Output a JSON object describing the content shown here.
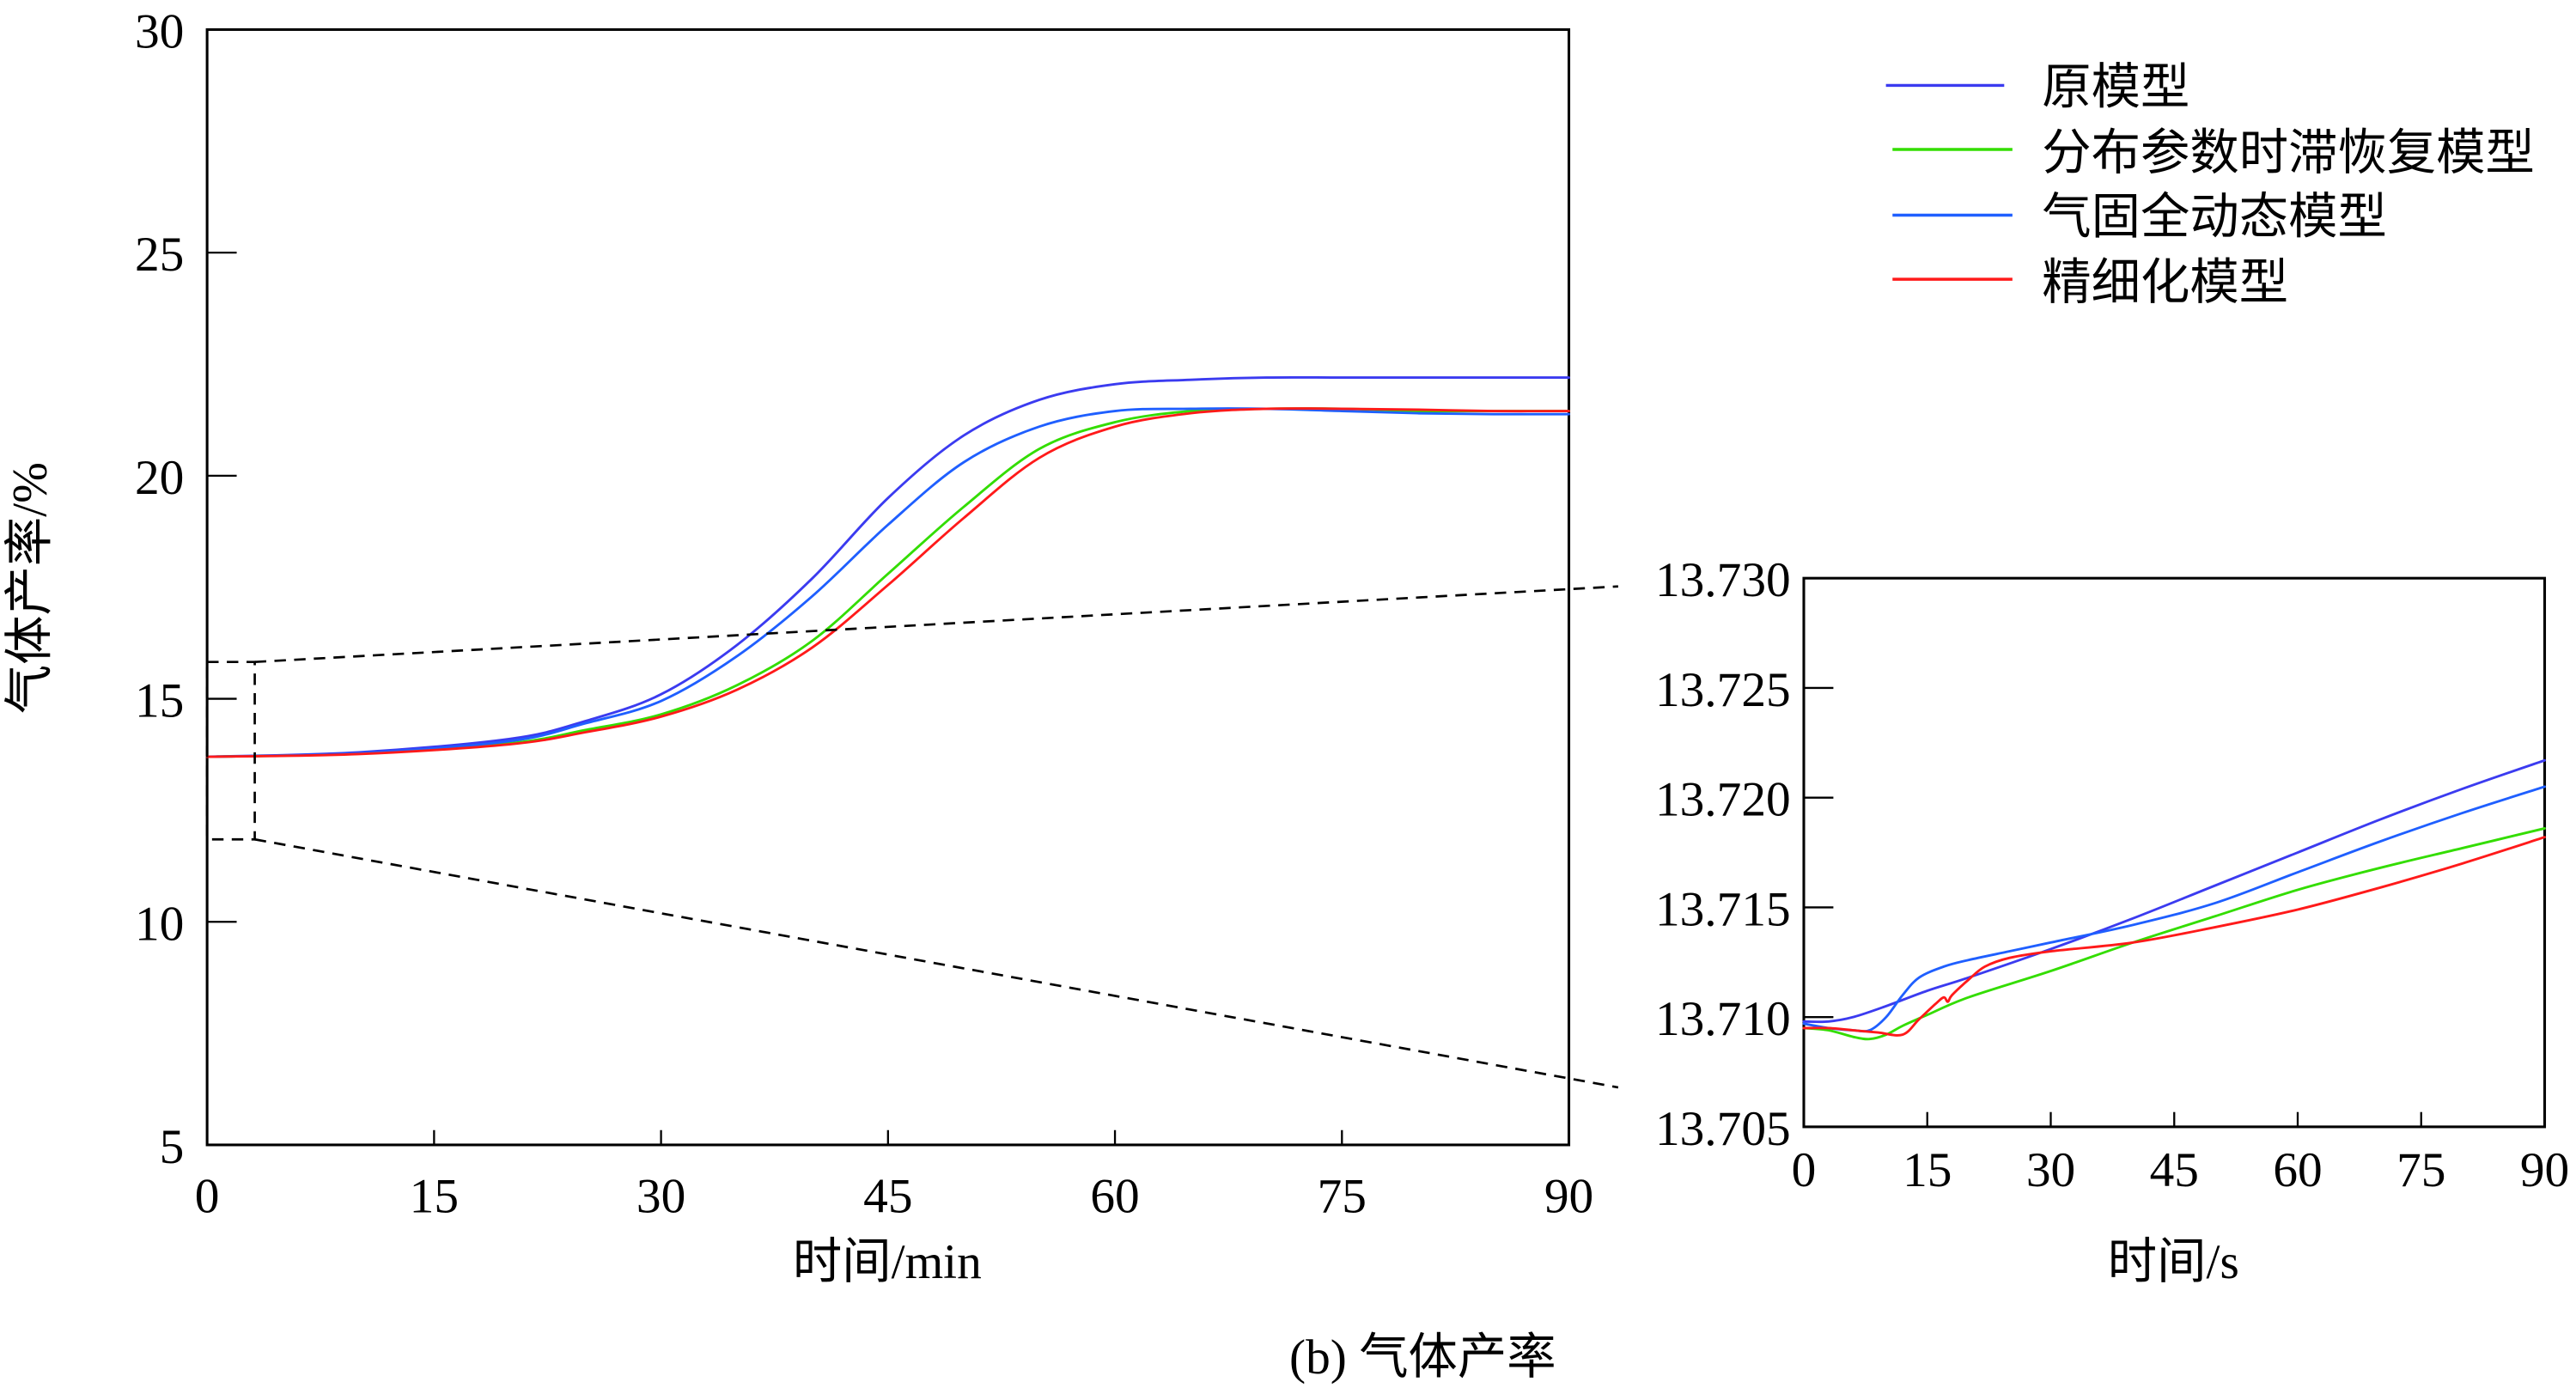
{
  "chart_data": [
    {
      "id": "main",
      "type": "line",
      "title": "",
      "xlabel": "时间/min",
      "ylabel": "气体产率/%",
      "xlim": [
        0,
        90
      ],
      "ylim": [
        5,
        30
      ],
      "xticks": [
        0,
        15,
        30,
        45,
        60,
        75,
        90
      ],
      "yticks": [
        5,
        10,
        15,
        20,
        25,
        30
      ],
      "xtick_labels": [
        "0",
        "15",
        "30",
        "45",
        "60",
        "75",
        "90"
      ],
      "ytick_labels": [
        "5",
        "10",
        "15",
        "20",
        "25",
        "30"
      ],
      "grid": false,
      "legend_position": "top-right (outside)",
      "zoom_box": {
        "x": [
          0,
          3
        ],
        "y": [
          11.8,
          15.8
        ]
      },
      "series": [
        {
          "name": "原模型",
          "color": "#3b3bf0",
          "x": [
            0,
            10,
            20,
            25,
            30,
            35,
            40,
            45,
            50,
            55,
            60,
            65,
            70,
            75,
            80,
            85,
            90
          ],
          "y": [
            13.7,
            13.8,
            14.1,
            14.5,
            15.1,
            16.2,
            17.7,
            19.5,
            20.9,
            21.7,
            22.05,
            22.15,
            22.2,
            22.2,
            22.2,
            22.2,
            22.2
          ]
        },
        {
          "name": "分布参数时滞恢复模型",
          "color": "#33dd00",
          "x": [
            0,
            10,
            20,
            25,
            30,
            35,
            40,
            45,
            50,
            55,
            60,
            65,
            70,
            75,
            80,
            85,
            90
          ],
          "y": [
            13.7,
            13.77,
            14.0,
            14.3,
            14.65,
            15.3,
            16.3,
            17.8,
            19.3,
            20.6,
            21.2,
            21.45,
            21.5,
            21.5,
            21.45,
            21.45,
            21.45
          ]
        },
        {
          "name": "气固全动态模型",
          "color": "#1f5fff",
          "x": [
            0,
            10,
            20,
            25,
            30,
            35,
            40,
            45,
            50,
            55,
            60,
            65,
            70,
            75,
            80,
            85,
            90
          ],
          "y": [
            13.7,
            13.78,
            14.05,
            14.45,
            14.95,
            15.95,
            17.3,
            18.9,
            20.3,
            21.1,
            21.45,
            21.5,
            21.5,
            21.45,
            21.4,
            21.38,
            21.38
          ]
        },
        {
          "name": "精细化模型",
          "color": "#ff1a1a",
          "x": [
            0,
            10,
            20,
            25,
            30,
            35,
            40,
            45,
            50,
            55,
            60,
            65,
            70,
            75,
            80,
            85,
            90
          ],
          "y": [
            13.7,
            13.76,
            13.98,
            14.25,
            14.6,
            15.2,
            16.15,
            17.55,
            19.05,
            20.4,
            21.1,
            21.4,
            21.5,
            21.5,
            21.48,
            21.45,
            21.45
          ]
        }
      ]
    },
    {
      "id": "inset",
      "type": "line",
      "title": "",
      "xlabel": "时间/s",
      "ylabel": "",
      "xlim": [
        0,
        90
      ],
      "ylim": [
        13.705,
        13.73
      ],
      "xticks": [
        0,
        15,
        30,
        45,
        60,
        75,
        90
      ],
      "yticks": [
        13.705,
        13.71,
        13.715,
        13.72,
        13.725,
        13.73
      ],
      "xtick_labels": [
        "0",
        "15",
        "30",
        "45",
        "60",
        "75",
        "90"
      ],
      "ytick_labels": [
        "13.705",
        "13.710",
        "13.715",
        "13.720",
        "13.725",
        "13.730"
      ],
      "grid": false,
      "series": [
        {
          "name": "原模型",
          "color": "#3b3bf0",
          "x": [
            0,
            3,
            6,
            10,
            15,
            20,
            30,
            40,
            50,
            60,
            70,
            80,
            90
          ],
          "y": [
            13.7098,
            13.7098,
            13.71,
            13.7105,
            13.7112,
            13.7118,
            13.7131,
            13.7145,
            13.716,
            13.7175,
            13.719,
            13.7204,
            13.7217
          ]
        },
        {
          "name": "分布参数时滞恢复模型",
          "color": "#33dd00",
          "x": [
            0,
            3,
            6,
            8,
            10,
            12,
            15,
            20,
            30,
            40,
            50,
            60,
            70,
            80,
            90
          ],
          "y": [
            13.7095,
            13.7094,
            13.7091,
            13.709,
            13.7092,
            13.7096,
            13.7101,
            13.7109,
            13.7121,
            13.7134,
            13.7146,
            13.7158,
            13.7168,
            13.7177,
            13.7186
          ]
        },
        {
          "name": "气固全动态模型",
          "color": "#1f5fff",
          "x": [
            0,
            3,
            6,
            8,
            10,
            12,
            14,
            17,
            20,
            25,
            30,
            40,
            50,
            60,
            70,
            80,
            90
          ],
          "y": [
            13.7097,
            13.7095,
            13.7094,
            13.7094,
            13.71,
            13.711,
            13.7118,
            13.7123,
            13.7126,
            13.713,
            13.7134,
            13.7142,
            13.7152,
            13.7166,
            13.718,
            13.7193,
            13.7205
          ]
        },
        {
          "name": "精细化模型",
          "color": "#ff1a1a",
          "x": [
            0,
            3,
            6,
            9,
            12,
            14,
            16,
            17,
            17.5,
            18,
            20,
            22,
            25,
            30,
            40,
            50,
            60,
            70,
            80,
            90
          ],
          "y": [
            13.7095,
            13.7095,
            13.7094,
            13.7093,
            13.7092,
            13.7099,
            13.7106,
            13.7109,
            13.7107,
            13.711,
            13.7117,
            13.7123,
            13.7127,
            13.713,
            13.7134,
            13.7141,
            13.7149,
            13.7159,
            13.717,
            13.7182
          ]
        }
      ]
    }
  ],
  "legend": {
    "items": [
      {
        "label": "原模型",
        "color": "#3b3bf0"
      },
      {
        "label": "分布参数时滞恢复模型",
        "color": "#33dd00"
      },
      {
        "label": "气固全动态模型",
        "color": "#1f5fff"
      },
      {
        "label": "精细化模型",
        "color": "#ff1a1a"
      }
    ]
  },
  "caption": "(b) 气体产率"
}
